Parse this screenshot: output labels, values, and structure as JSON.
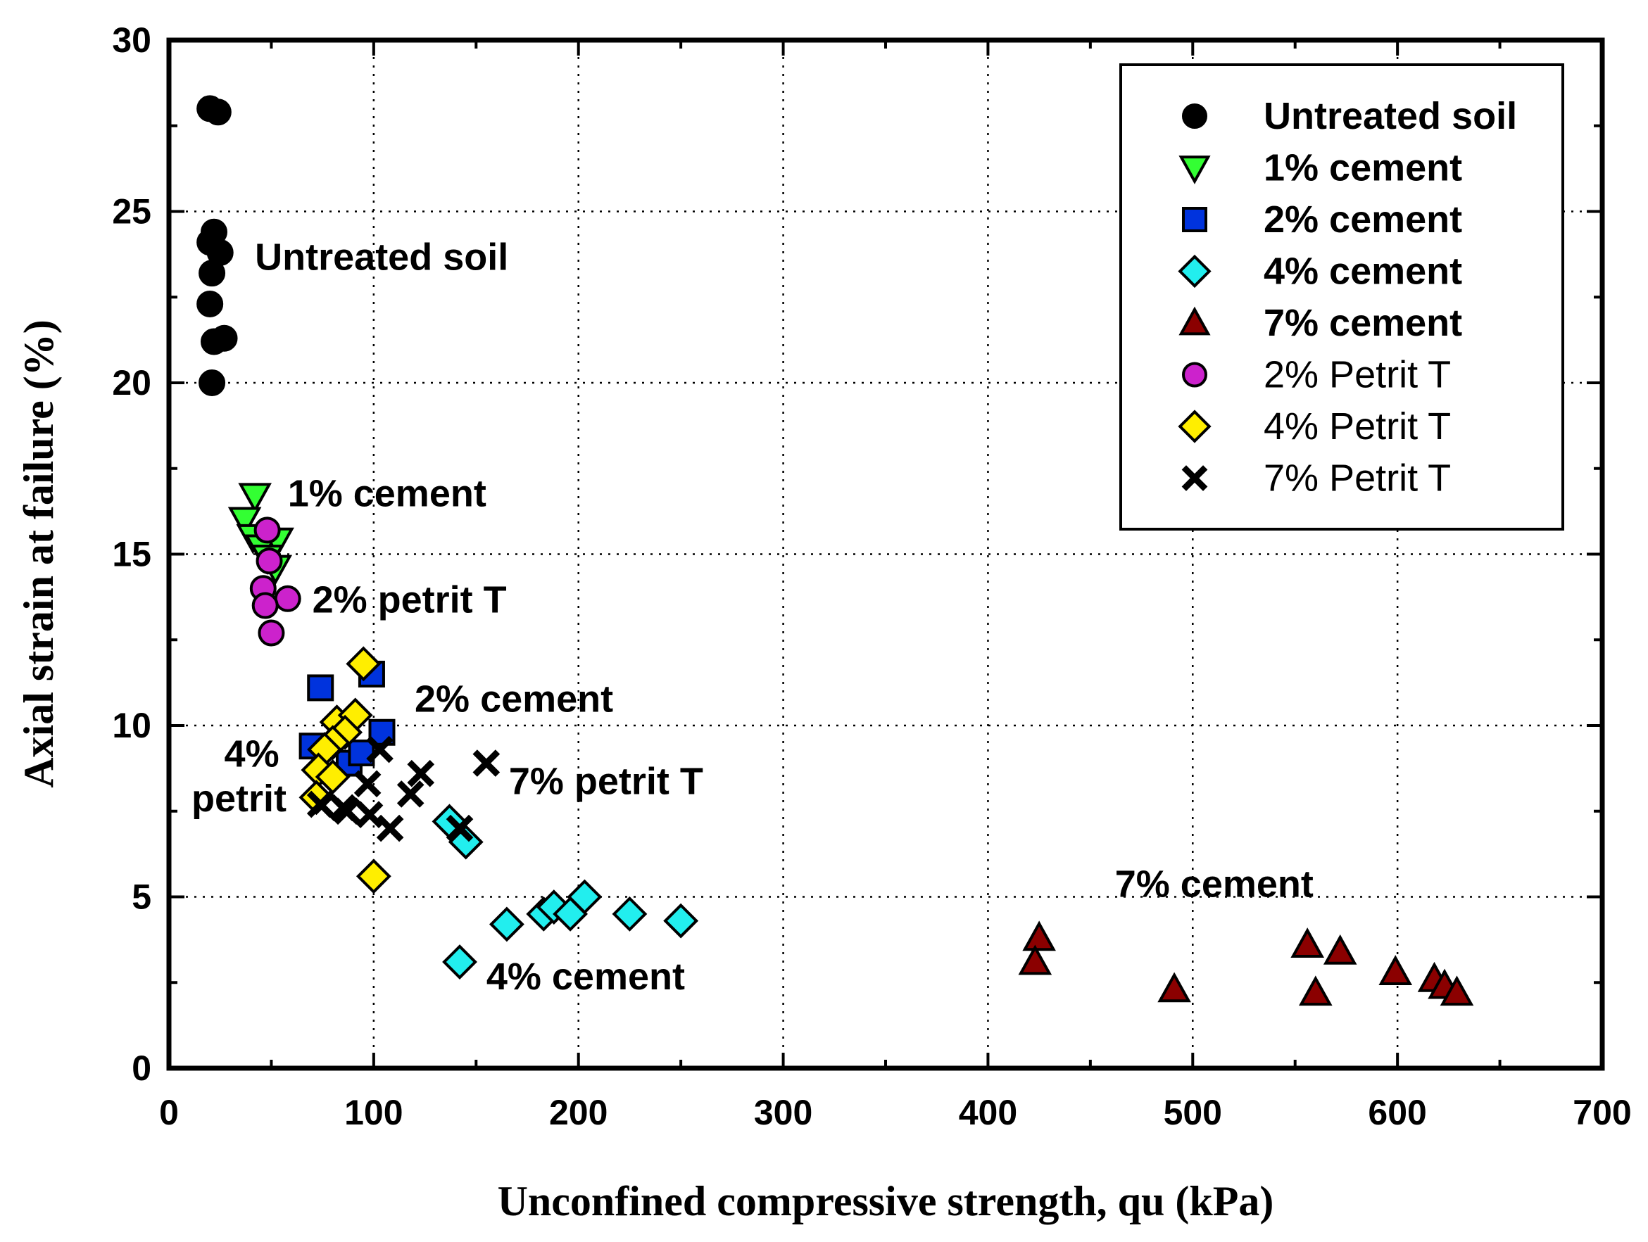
{
  "chart_data": {
    "type": "scatter",
    "title": "",
    "xlabel": "Unconfined compressive strength, qu (kPa)",
    "ylabel": "Axial strain at failure (%)",
    "xlim": [
      0,
      700
    ],
    "ylim": [
      0,
      30
    ],
    "xticks": [
      0,
      100,
      200,
      300,
      400,
      500,
      600,
      700
    ],
    "yticks": [
      0,
      5,
      10,
      15,
      20,
      25,
      30
    ],
    "grid": true,
    "legend_position": "top-right",
    "series": [
      {
        "name": "Untreated soil",
        "marker": "circle",
        "color": "#000000",
        "bold": true,
        "x": [
          20,
          24,
          22,
          25,
          20,
          21,
          20,
          22,
          27,
          21
        ],
        "y": [
          28.0,
          27.9,
          24.4,
          23.8,
          24.1,
          23.2,
          22.3,
          21.2,
          21.3,
          20.0
        ]
      },
      {
        "name": "1% cement",
        "marker": "triangle-down",
        "color": "#33ff33",
        "bold": true,
        "x": [
          42,
          37,
          41,
          45,
          53,
          48,
          52
        ],
        "y": [
          16.7,
          16.0,
          15.5,
          15.2,
          15.4,
          14.9,
          14.6
        ]
      },
      {
        "name": "2% cement",
        "marker": "square",
        "color": "#0033dd",
        "bold": true,
        "x": [
          74,
          99,
          104,
          70,
          88,
          94
        ],
        "y": [
          11.1,
          11.5,
          9.8,
          9.4,
          8.9,
          9.2
        ]
      },
      {
        "name": "4% cement",
        "marker": "diamond",
        "color": "#22eeee",
        "bold": true,
        "x": [
          137,
          145,
          183,
          188,
          196,
          203,
          225,
          250,
          165,
          142
        ],
        "y": [
          7.2,
          6.6,
          4.5,
          4.7,
          4.5,
          5.0,
          4.5,
          4.3,
          4.2,
          3.1
        ]
      },
      {
        "name": "7% cement",
        "marker": "triangle-up",
        "color": "#8b0000",
        "bold": true,
        "x": [
          425,
          423,
          491,
          556,
          572,
          560,
          599,
          618,
          623,
          629
        ],
        "y": [
          3.8,
          3.1,
          2.3,
          3.6,
          3.4,
          2.2,
          2.8,
          2.6,
          2.4,
          2.2
        ]
      },
      {
        "name": "2% Petrit T",
        "marker": "circle",
        "color": "#cc22cc",
        "bold": false,
        "x": [
          48,
          49,
          46,
          58,
          47,
          50
        ],
        "y": [
          15.7,
          14.8,
          14.0,
          13.7,
          13.5,
          12.7
        ]
      },
      {
        "name": "4% Petrit T",
        "marker": "diamond",
        "color": "#ffee00",
        "bold": false,
        "x": [
          95,
          82,
          91,
          86,
          80,
          76,
          73,
          80,
          72,
          100
        ],
        "y": [
          11.8,
          10.1,
          10.3,
          9.8,
          9.5,
          9.3,
          8.7,
          8.5,
          7.9,
          5.6
        ]
      },
      {
        "name": "7% Petrit T",
        "marker": "x",
        "color": "#000000",
        "bold": false,
        "x": [
          155,
          123,
          118,
          103,
          97,
          87,
          74,
          85,
          98,
          108,
          142
        ],
        "y": [
          8.9,
          8.6,
          8.0,
          9.3,
          8.3,
          7.5,
          7.7,
          7.6,
          7.4,
          7.0,
          7.0
        ]
      }
    ],
    "annotations": [
      {
        "text": "Untreated soil",
        "x": 42,
        "y": 23.3
      },
      {
        "text": "1% cement",
        "x": 58,
        "y": 16.4
      },
      {
        "text": "2% petrit T",
        "x": 70,
        "y": 13.3
      },
      {
        "text": "2% cement",
        "x": 120,
        "y": 10.4
      },
      {
        "text": "4%",
        "x": 27,
        "y": 8.8
      },
      {
        "text": "petrit",
        "x": 11,
        "y": 7.5
      },
      {
        "text": "7% petrit T",
        "x": 166,
        "y": 8.0
      },
      {
        "text": "7% cement",
        "x": 462,
        "y": 5.0
      },
      {
        "text": "4% cement",
        "x": 155,
        "y": 2.3
      }
    ]
  }
}
